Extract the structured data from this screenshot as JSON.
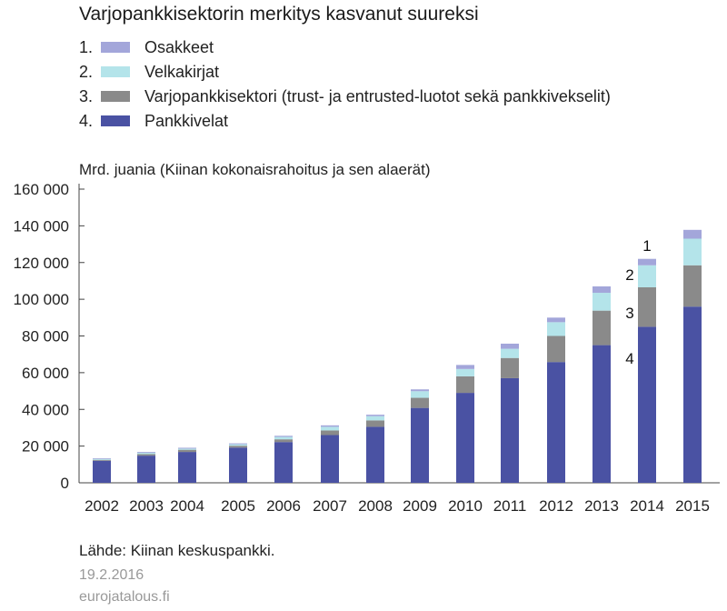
{
  "chart_data": {
    "type": "bar",
    "stacked": true,
    "title": "Varjopankkisektorin merkitys kasvanut suureksi",
    "ylabel": "Mrd. juania (Kiinan kokonaisrahoitus ja sen alaerät)",
    "categories": [
      "2002",
      "2003",
      "2004",
      "2005",
      "2006",
      "2007",
      "2008",
      "2009",
      "2010",
      "2011",
      "2012",
      "2013",
      "2014",
      "2015"
    ],
    "ylim": [
      0,
      160000
    ],
    "yticks": [
      0,
      20000,
      40000,
      60000,
      80000,
      100000,
      120000,
      140000,
      160000
    ],
    "ytick_labels": [
      "0",
      "20 000",
      "40 000",
      "60 000",
      "80 000",
      "100 000",
      "120 000",
      "140 000",
      "160 000"
    ],
    "series": [
      {
        "number": "4.",
        "name": "Pankkivelat",
        "color": "#4a52a3",
        "values": [
          12000,
          14800,
          16800,
          19200,
          22200,
          26000,
          30500,
          40800,
          49000,
          57000,
          65800,
          75000,
          85000,
          96000
        ]
      },
      {
        "number": "3.",
        "name": "Varjopankkisektori (trust- ja entrusted-luotot sekä pankkivekselit)",
        "color": "#8a8a8a",
        "values": [
          500,
          800,
          1200,
          1000,
          1500,
          2500,
          3500,
          5500,
          9000,
          11000,
          14200,
          18800,
          21500,
          22500
        ]
      },
      {
        "number": "2.",
        "name": "Velkakirjat",
        "color": "#b4e4ea",
        "values": [
          500,
          700,
          600,
          800,
          1300,
          2000,
          2300,
          3600,
          4000,
          5000,
          7500,
          9700,
          12000,
          14500
        ]
      },
      {
        "number": "1.",
        "name": "Osakkeet",
        "color": "#a3a6da",
        "values": [
          400,
          500,
          500,
          500,
          600,
          800,
          800,
          1000,
          2200,
          2800,
          2500,
          3500,
          3500,
          4800
        ]
      }
    ],
    "annotations": [
      "1",
      "2",
      "3",
      "4"
    ],
    "grid": false,
    "legend_position": "top-left"
  },
  "legend": [
    {
      "number": "1.",
      "label": "Osakkeet",
      "color": "#a3a6da"
    },
    {
      "number": "2.",
      "label": "Velkakirjat",
      "color": "#b4e4ea"
    },
    {
      "number": "3.",
      "label": "Varjopankkisektori (trust- ja entrusted-luotot sekä pankkivekselit)",
      "color": "#8a8a8a"
    },
    {
      "number": "4.",
      "label": "Pankkivelat",
      "color": "#4a52a3"
    }
  ],
  "footer": {
    "source": "Lähde: Kiinan keskuspankki.",
    "date": "19.2.2016",
    "site": "eurojatalous.fi"
  }
}
